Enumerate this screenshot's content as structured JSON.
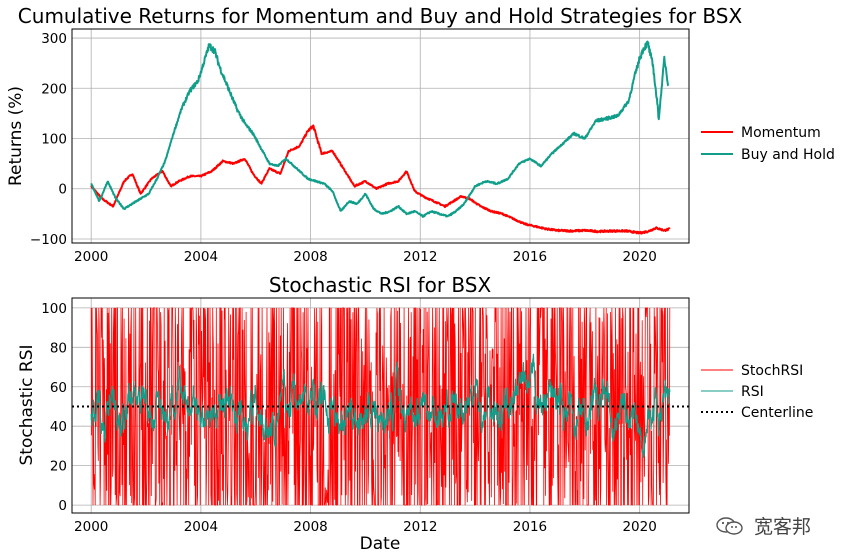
{
  "chart_data": [
    {
      "type": "line",
      "title": "Cumulative Returns for Momentum and Buy and Hold Strategies for BSX",
      "xlabel": "",
      "ylabel": "Returns (%)",
      "xlim": [
        1999.3,
        2021.8
      ],
      "ylim": [
        -108,
        318
      ],
      "x_ticks": [
        2000,
        2004,
        2008,
        2012,
        2016,
        2020
      ],
      "x_tick_labels": [
        "2000",
        "2004",
        "2008",
        "2012",
        "2016",
        "2020"
      ],
      "y_ticks": [
        -100,
        0,
        100,
        200,
        300
      ],
      "y_tick_labels": [
        "−100",
        "0",
        "100",
        "200",
        "300"
      ],
      "grid": true,
      "legend": "right",
      "series": [
        {
          "name": "Momentum",
          "color": "#ff0000",
          "x": [
            2000.0,
            2000.4,
            2000.8,
            2001.2,
            2001.5,
            2001.8,
            2002.2,
            2002.6,
            2002.9,
            2003.2,
            2003.6,
            2004.0,
            2004.4,
            2004.8,
            2005.2,
            2005.6,
            2005.9,
            2006.2,
            2006.5,
            2006.9,
            2007.2,
            2007.6,
            2007.9,
            2008.1,
            2008.4,
            2008.8,
            2009.2,
            2009.6,
            2010.0,
            2010.4,
            2010.8,
            2011.2,
            2011.5,
            2011.8,
            2012.1,
            2012.5,
            2012.9,
            2013.2,
            2013.5,
            2013.8,
            2014.2,
            2014.6,
            2015.0,
            2015.4,
            2015.8,
            2016.2,
            2016.6,
            2017.0,
            2017.5,
            2018.0,
            2018.5,
            2019.0,
            2019.5,
            2020.0,
            2020.3,
            2020.6,
            2020.9,
            2021.1
          ],
          "y": [
            5,
            -20,
            -35,
            15,
            30,
            -10,
            20,
            35,
            5,
            15,
            25,
            25,
            35,
            55,
            50,
            60,
            30,
            10,
            40,
            30,
            75,
            85,
            115,
            125,
            70,
            75,
            40,
            5,
            15,
            0,
            10,
            15,
            35,
            -5,
            -15,
            -25,
            -35,
            -25,
            -15,
            -20,
            -35,
            -45,
            -50,
            -60,
            -70,
            -75,
            -80,
            -83,
            -84,
            -83,
            -85,
            -84,
            -84,
            -88,
            -85,
            -78,
            -83,
            -80
          ]
        },
        {
          "name": "Buy and Hold",
          "color": "#109e8a",
          "x": [
            2000.0,
            2000.3,
            2000.6,
            2000.9,
            2001.2,
            2001.5,
            2001.8,
            2002.1,
            2002.4,
            2002.7,
            2003.0,
            2003.3,
            2003.6,
            2003.9,
            2004.1,
            2004.3,
            2004.5,
            2004.7,
            2005.0,
            2005.3,
            2005.6,
            2005.9,
            2006.2,
            2006.5,
            2006.8,
            2007.1,
            2007.5,
            2007.9,
            2008.2,
            2008.5,
            2008.8,
            2009.1,
            2009.4,
            2009.7,
            2010.0,
            2010.3,
            2010.6,
            2010.9,
            2011.2,
            2011.5,
            2011.8,
            2012.1,
            2012.4,
            2012.7,
            2013.0,
            2013.3,
            2013.6,
            2014.0,
            2014.4,
            2014.8,
            2015.2,
            2015.6,
            2016.0,
            2016.4,
            2016.8,
            2017.2,
            2017.6,
            2018.0,
            2018.4,
            2018.8,
            2019.2,
            2019.6,
            2019.8,
            2020.0,
            2020.15,
            2020.3,
            2020.5,
            2020.7,
            2020.9,
            2021.05
          ],
          "y": [
            10,
            -25,
            15,
            -20,
            -40,
            -30,
            -20,
            -10,
            20,
            55,
            110,
            160,
            195,
            215,
            250,
            285,
            275,
            240,
            200,
            160,
            130,
            110,
            80,
            50,
            45,
            60,
            40,
            20,
            15,
            10,
            -5,
            -45,
            -25,
            -30,
            -10,
            -40,
            -50,
            -45,
            -35,
            -50,
            -45,
            -55,
            -45,
            -50,
            -55,
            -45,
            -30,
            5,
            15,
            10,
            20,
            50,
            60,
            45,
            70,
            90,
            110,
            100,
            135,
            140,
            145,
            175,
            220,
            260,
            280,
            290,
            240,
            140,
            260,
            205
          ]
        }
      ]
    },
    {
      "type": "line",
      "title": "Stochastic RSI for BSX",
      "xlabel": "Date",
      "ylabel": "Stochastic RSI",
      "xlim": [
        1999.3,
        2021.8
      ],
      "ylim": [
        -4,
        105
      ],
      "x_ticks": [
        2000,
        2004,
        2008,
        2012,
        2016,
        2020
      ],
      "x_tick_labels": [
        "2000",
        "2004",
        "2008",
        "2012",
        "2016",
        "2020"
      ],
      "y_ticks": [
        0,
        20,
        40,
        60,
        80,
        100
      ],
      "y_tick_labels": [
        "0",
        "20",
        "40",
        "60",
        "80",
        "100"
      ],
      "grid": true,
      "legend": "right",
      "x_range": [
        2000.0,
        2021.1
      ],
      "series": [
        {
          "name": "StochRSI",
          "color": "#ff0000",
          "range": [
            0,
            100
          ]
        },
        {
          "name": "RSI",
          "color": "#109e8a",
          "range": [
            20,
            80
          ],
          "center": 50
        },
        {
          "name": "Centerline",
          "color": "#000000",
          "style": "dotted",
          "value": 50
        }
      ]
    }
  ],
  "watermark": {
    "text": "宽客邦",
    "icon": "wechat-icon"
  }
}
